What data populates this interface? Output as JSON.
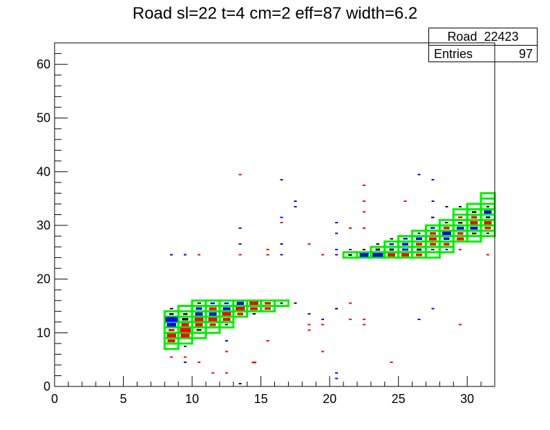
{
  "title": "Road sl=22 t=4 cm=2 eff=87 width=6.2",
  "stats": {
    "name": "Road_22423",
    "entries_label": "Entries",
    "entries_value": "97"
  },
  "chart_data": {
    "type": "heatmap",
    "title": "Road sl=22 t=4 cm=2 eff=87 width=6.2",
    "xlabel": "",
    "ylabel": "",
    "xlim": [
      0,
      32
    ],
    "ylim": [
      0,
      64
    ],
    "x_ticks": [
      0,
      5,
      10,
      15,
      20,
      25,
      30
    ],
    "y_ticks": [
      0,
      10,
      20,
      30,
      40,
      50,
      60
    ],
    "grid": false,
    "colors": {
      "red": "#ff0000",
      "blue": "#0000ff",
      "black": "#000000",
      "road": "#00ee00"
    },
    "road_boxes": [
      [
        8,
        7
      ],
      [
        8,
        8
      ],
      [
        8,
        9
      ],
      [
        8,
        10
      ],
      [
        8,
        11
      ],
      [
        8,
        12
      ],
      [
        8,
        13
      ],
      [
        9,
        8
      ],
      [
        9,
        9
      ],
      [
        9,
        10
      ],
      [
        9,
        11
      ],
      [
        9,
        12
      ],
      [
        9,
        13
      ],
      [
        9,
        14
      ],
      [
        10,
        9
      ],
      [
        10,
        10
      ],
      [
        10,
        11
      ],
      [
        10,
        12
      ],
      [
        10,
        13
      ],
      [
        10,
        14
      ],
      [
        10,
        15
      ],
      [
        11,
        10
      ],
      [
        11,
        11
      ],
      [
        11,
        12
      ],
      [
        11,
        13
      ],
      [
        11,
        14
      ],
      [
        11,
        15
      ],
      [
        12,
        11
      ],
      [
        12,
        12
      ],
      [
        12,
        13
      ],
      [
        12,
        14
      ],
      [
        12,
        15
      ],
      [
        13,
        13
      ],
      [
        13,
        14
      ],
      [
        13,
        15
      ],
      [
        14,
        14
      ],
      [
        14,
        15
      ],
      [
        15,
        14
      ],
      [
        15,
        15
      ],
      [
        16,
        15
      ],
      [
        21,
        24
      ],
      [
        22,
        24
      ],
      [
        23,
        24
      ],
      [
        23,
        25
      ],
      [
        24,
        24
      ],
      [
        24,
        25
      ],
      [
        24,
        26
      ],
      [
        25,
        24
      ],
      [
        25,
        25
      ],
      [
        25,
        26
      ],
      [
        25,
        27
      ],
      [
        26,
        24
      ],
      [
        26,
        25
      ],
      [
        26,
        26
      ],
      [
        26,
        27
      ],
      [
        26,
        28
      ],
      [
        27,
        24
      ],
      [
        27,
        25
      ],
      [
        27,
        26
      ],
      [
        27,
        27
      ],
      [
        27,
        28
      ],
      [
        27,
        29
      ],
      [
        28,
        25
      ],
      [
        28,
        26
      ],
      [
        28,
        27
      ],
      [
        28,
        28
      ],
      [
        28,
        29
      ],
      [
        28,
        30
      ],
      [
        29,
        27
      ],
      [
        29,
        28
      ],
      [
        29,
        29
      ],
      [
        29,
        30
      ],
      [
        29,
        31
      ],
      [
        29,
        32
      ],
      [
        30,
        27
      ],
      [
        30,
        28
      ],
      [
        30,
        29
      ],
      [
        30,
        30
      ],
      [
        30,
        31
      ],
      [
        30,
        32
      ],
      [
        30,
        33
      ],
      [
        31,
        28
      ],
      [
        31,
        29
      ],
      [
        31,
        30
      ],
      [
        31,
        31
      ],
      [
        31,
        32
      ],
      [
        31,
        33
      ],
      [
        31,
        34
      ],
      [
        31,
        35
      ]
    ],
    "cells": [
      {
        "x": 8,
        "y": 8,
        "c": "red",
        "w": 0.5
      },
      {
        "x": 8,
        "y": 9,
        "c": "red",
        "w": 0.6
      },
      {
        "x": 8,
        "y": 10,
        "c": "red",
        "w": 0.4
      },
      {
        "x": 8,
        "y": 11,
        "c": "blue",
        "w": 0.6
      },
      {
        "x": 8,
        "y": 12,
        "c": "blue",
        "w": 0.8
      },
      {
        "x": 8,
        "y": 13,
        "c": "black",
        "w": 0.3
      },
      {
        "x": 8,
        "y": 14,
        "c": "black",
        "w": 0.2
      },
      {
        "x": 8,
        "y": 5,
        "c": "red",
        "w": 0.15
      },
      {
        "x": 8,
        "y": 24,
        "c": "blue",
        "w": 0.15
      },
      {
        "x": 9,
        "y": 9,
        "c": "red",
        "w": 0.6
      },
      {
        "x": 9,
        "y": 10,
        "c": "red",
        "w": 0.7
      },
      {
        "x": 9,
        "y": 11,
        "c": "red",
        "w": 0.5
      },
      {
        "x": 9,
        "y": 12,
        "c": "black",
        "w": 0.4
      },
      {
        "x": 9,
        "y": 13,
        "c": "black",
        "w": 0.3
      },
      {
        "x": 9,
        "y": 7,
        "c": "blue",
        "w": 0.15
      },
      {
        "x": 9,
        "y": 5,
        "c": "red",
        "w": 0.15
      },
      {
        "x": 9,
        "y": 4,
        "c": "blue",
        "w": 0.15
      },
      {
        "x": 9,
        "y": 24,
        "c": "blue",
        "w": 0.15
      },
      {
        "x": 10,
        "y": 10,
        "c": "black",
        "w": 0.3
      },
      {
        "x": 10,
        "y": 11,
        "c": "red",
        "w": 0.5
      },
      {
        "x": 10,
        "y": 12,
        "c": "red",
        "w": 0.6
      },
      {
        "x": 10,
        "y": 13,
        "c": "blue",
        "w": 0.5
      },
      {
        "x": 10,
        "y": 14,
        "c": "blue",
        "w": 0.4
      },
      {
        "x": 10,
        "y": 15,
        "c": "black",
        "w": 0.25
      },
      {
        "x": 10,
        "y": 4,
        "c": "red",
        "w": 0.15
      },
      {
        "x": 10,
        "y": 24,
        "c": "red",
        "w": 0.15
      },
      {
        "x": 11,
        "y": 11,
        "c": "red",
        "w": 0.4
      },
      {
        "x": 11,
        "y": 12,
        "c": "red",
        "w": 0.6
      },
      {
        "x": 11,
        "y": 13,
        "c": "blue",
        "w": 0.5
      },
      {
        "x": 11,
        "y": 14,
        "c": "red",
        "w": 0.5
      },
      {
        "x": 11,
        "y": 15,
        "c": "blue",
        "w": 0.3
      },
      {
        "x": 11,
        "y": 2,
        "c": "red",
        "w": 0.15
      },
      {
        "x": 12,
        "y": 11,
        "c": "black",
        "w": 0.2
      },
      {
        "x": 12,
        "y": 12,
        "c": "red",
        "w": 0.5
      },
      {
        "x": 12,
        "y": 13,
        "c": "red",
        "w": 0.6
      },
      {
        "x": 12,
        "y": 14,
        "c": "blue",
        "w": 0.5
      },
      {
        "x": 12,
        "y": 15,
        "c": "blue",
        "w": 0.3
      },
      {
        "x": 12,
        "y": 2,
        "c": "red",
        "w": 0.15
      },
      {
        "x": 12,
        "y": 6,
        "c": "red",
        "w": 0.15
      },
      {
        "x": 12,
        "y": 8,
        "c": "blue",
        "w": 0.15
      },
      {
        "x": 13,
        "y": 13,
        "c": "red",
        "w": 0.4
      },
      {
        "x": 13,
        "y": 14,
        "c": "red",
        "w": 0.6
      },
      {
        "x": 13,
        "y": 15,
        "c": "blue",
        "w": 0.5
      },
      {
        "x": 13,
        "y": 24,
        "c": "red",
        "w": 0.15
      },
      {
        "x": 13,
        "y": 26,
        "c": "blue",
        "w": 0.15
      },
      {
        "x": 13,
        "y": 29,
        "c": "blue",
        "w": 0.15
      },
      {
        "x": 13,
        "y": 39,
        "c": "red",
        "w": 0.15
      },
      {
        "x": 13,
        "y": 0,
        "c": "black",
        "w": 0.1
      },
      {
        "x": 14,
        "y": 14,
        "c": "red",
        "w": 0.5
      },
      {
        "x": 14,
        "y": 15,
        "c": "red",
        "w": 0.6
      },
      {
        "x": 14,
        "y": 4,
        "c": "red",
        "w": 0.3
      },
      {
        "x": 14,
        "y": 13,
        "c": "black",
        "w": 0.2
      },
      {
        "x": 15,
        "y": 14,
        "c": "red",
        "w": 0.4
      },
      {
        "x": 15,
        "y": 15,
        "c": "red",
        "w": 0.4
      },
      {
        "x": 15,
        "y": 24,
        "c": "red",
        "w": 0.15
      },
      {
        "x": 15,
        "y": 25,
        "c": "red",
        "w": 0.15
      },
      {
        "x": 15,
        "y": 8,
        "c": "red",
        "w": 0.15
      },
      {
        "x": 16,
        "y": 15,
        "c": "black",
        "w": 0.2
      },
      {
        "x": 16,
        "y": 24,
        "c": "blue",
        "w": 0.15
      },
      {
        "x": 16,
        "y": 26,
        "c": "blue",
        "w": 0.15
      },
      {
        "x": 16,
        "y": 30,
        "c": "red",
        "w": 0.15
      },
      {
        "x": 16,
        "y": 31,
        "c": "blue",
        "w": 0.15
      },
      {
        "x": 16,
        "y": 38,
        "c": "blue",
        "w": 0.15
      },
      {
        "x": 17,
        "y": 15,
        "c": "black",
        "w": 0.15
      },
      {
        "x": 17,
        "y": 33,
        "c": "blue",
        "w": 0.15
      },
      {
        "x": 17,
        "y": 34,
        "c": "blue",
        "w": 0.15
      },
      {
        "x": 18,
        "y": 10,
        "c": "red",
        "w": 0.15
      },
      {
        "x": 18,
        "y": 11,
        "c": "red",
        "w": 0.15
      },
      {
        "x": 18,
        "y": 13,
        "c": "blue",
        "w": 0.15
      },
      {
        "x": 18,
        "y": 26,
        "c": "red",
        "w": 0.15
      },
      {
        "x": 19,
        "y": 6,
        "c": "red",
        "w": 0.15
      },
      {
        "x": 19,
        "y": 11,
        "c": "red",
        "w": 0.15
      },
      {
        "x": 19,
        "y": 12,
        "c": "blue",
        "w": 0.15
      },
      {
        "x": 19,
        "y": 24,
        "c": "red",
        "w": 0.15
      },
      {
        "x": 20,
        "y": 1,
        "c": "blue",
        "w": 0.15
      },
      {
        "x": 20,
        "y": 2,
        "c": "blue",
        "w": 0.15
      },
      {
        "x": 20,
        "y": 14,
        "c": "black",
        "w": 0.1
      },
      {
        "x": 20,
        "y": 24,
        "c": "blue",
        "w": 0.15
      },
      {
        "x": 20,
        "y": 25,
        "c": "blue",
        "w": 0.15
      },
      {
        "x": 20,
        "y": 28,
        "c": "blue",
        "w": 0.15
      },
      {
        "x": 20,
        "y": 30,
        "c": "blue",
        "w": 0.15
      },
      {
        "x": 21,
        "y": 15,
        "c": "red",
        "w": 0.15
      },
      {
        "x": 21,
        "y": 24,
        "c": "black",
        "w": 0.25
      },
      {
        "x": 21,
        "y": 25,
        "c": "blue",
        "w": 0.2
      },
      {
        "x": 21,
        "y": 29,
        "c": "red",
        "w": 0.15
      },
      {
        "x": 21,
        "y": 12,
        "c": "red",
        "w": 0.15
      },
      {
        "x": 22,
        "y": 24,
        "c": "blue",
        "w": 0.6
      },
      {
        "x": 22,
        "y": 25,
        "c": "black",
        "w": 0.2
      },
      {
        "x": 22,
        "y": 11,
        "c": "red",
        "w": 0.15
      },
      {
        "x": 22,
        "y": 12,
        "c": "red",
        "w": 0.15
      },
      {
        "x": 22,
        "y": 29,
        "c": "red",
        "w": 0.15
      },
      {
        "x": 22,
        "y": 32,
        "c": "red",
        "w": 0.15
      },
      {
        "x": 22,
        "y": 34,
        "c": "red",
        "w": 0.15
      },
      {
        "x": 22,
        "y": 37,
        "c": "red",
        "w": 0.15
      },
      {
        "x": 23,
        "y": 24,
        "c": "blue",
        "w": 0.7
      },
      {
        "x": 23,
        "y": 25,
        "c": "black",
        "w": 0.3
      },
      {
        "x": 23,
        "y": 26,
        "c": "black",
        "w": 0.2
      },
      {
        "x": 24,
        "y": 24,
        "c": "red",
        "w": 0.5
      },
      {
        "x": 24,
        "y": 25,
        "c": "black",
        "w": 0.3
      },
      {
        "x": 24,
        "y": 26,
        "c": "blue",
        "w": 0.3
      },
      {
        "x": 24,
        "y": 27,
        "c": "black",
        "w": 0.2
      },
      {
        "x": 24,
        "y": 4,
        "c": "red",
        "w": 0.15
      },
      {
        "x": 25,
        "y": 24,
        "c": "red",
        "w": 0.5
      },
      {
        "x": 25,
        "y": 25,
        "c": "blue",
        "w": 0.4
      },
      {
        "x": 25,
        "y": 26,
        "c": "blue",
        "w": 0.4
      },
      {
        "x": 25,
        "y": 27,
        "c": "blue",
        "w": 0.3
      },
      {
        "x": 25,
        "y": 34,
        "c": "red",
        "w": 0.15
      },
      {
        "x": 26,
        "y": 24,
        "c": "red",
        "w": 0.4
      },
      {
        "x": 26,
        "y": 25,
        "c": "black",
        "w": 0.3
      },
      {
        "x": 26,
        "y": 26,
        "c": "red",
        "w": 0.4
      },
      {
        "x": 26,
        "y": 27,
        "c": "blue",
        "w": 0.4
      },
      {
        "x": 26,
        "y": 28,
        "c": "black",
        "w": 0.2
      },
      {
        "x": 26,
        "y": 12,
        "c": "blue",
        "w": 0.15
      },
      {
        "x": 26,
        "y": 39,
        "c": "blue",
        "w": 0.15
      },
      {
        "x": 27,
        "y": 25,
        "c": "black",
        "w": 0.2
      },
      {
        "x": 27,
        "y": 26,
        "c": "red",
        "w": 0.4
      },
      {
        "x": 27,
        "y": 27,
        "c": "red",
        "w": 0.5
      },
      {
        "x": 27,
        "y": 28,
        "c": "red",
        "w": 0.4
      },
      {
        "x": 27,
        "y": 29,
        "c": "blue",
        "w": 0.3
      },
      {
        "x": 27,
        "y": 14,
        "c": "blue",
        "w": 0.15
      },
      {
        "x": 27,
        "y": 34,
        "c": "blue",
        "w": 0.15
      },
      {
        "x": 27,
        "y": 38,
        "c": "blue",
        "w": 0.15
      },
      {
        "x": 27,
        "y": 31,
        "c": "black",
        "w": 0.2
      },
      {
        "x": 28,
        "y": 26,
        "c": "red",
        "w": 0.4
      },
      {
        "x": 28,
        "y": 27,
        "c": "blue",
        "w": 0.4
      },
      {
        "x": 28,
        "y": 28,
        "c": "blue",
        "w": 0.6
      },
      {
        "x": 28,
        "y": 29,
        "c": "red",
        "w": 0.4
      },
      {
        "x": 28,
        "y": 30,
        "c": "black",
        "w": 0.2
      },
      {
        "x": 28,
        "y": 25,
        "c": "blue",
        "w": 0.15
      },
      {
        "x": 28,
        "y": 33,
        "c": "black",
        "w": 0.15
      },
      {
        "x": 29,
        "y": 27,
        "c": "red",
        "w": 0.5
      },
      {
        "x": 29,
        "y": 28,
        "c": "red",
        "w": 0.4
      },
      {
        "x": 29,
        "y": 29,
        "c": "blue",
        "w": 0.5
      },
      {
        "x": 29,
        "y": 30,
        "c": "black",
        "w": 0.3
      },
      {
        "x": 29,
        "y": 31,
        "c": "red",
        "w": 0.3
      },
      {
        "x": 29,
        "y": 11,
        "c": "red",
        "w": 0.15
      },
      {
        "x": 29,
        "y": 25,
        "c": "red",
        "w": 0.15
      },
      {
        "x": 29,
        "y": 33,
        "c": "black",
        "w": 0.15
      },
      {
        "x": 30,
        "y": 28,
        "c": "black",
        "w": 0.3
      },
      {
        "x": 30,
        "y": 29,
        "c": "blue",
        "w": 0.5
      },
      {
        "x": 30,
        "y": 30,
        "c": "red",
        "w": 0.5
      },
      {
        "x": 30,
        "y": 31,
        "c": "red",
        "w": 0.4
      },
      {
        "x": 30,
        "y": 32,
        "c": "black",
        "w": 0.3
      },
      {
        "x": 31,
        "y": 28,
        "c": "black",
        "w": 0.2
      },
      {
        "x": 31,
        "y": 29,
        "c": "red",
        "w": 0.4
      },
      {
        "x": 31,
        "y": 30,
        "c": "red",
        "w": 0.5
      },
      {
        "x": 31,
        "y": 31,
        "c": "black",
        "w": 0.3
      },
      {
        "x": 31,
        "y": 32,
        "c": "blue",
        "w": 0.5
      },
      {
        "x": 31,
        "y": 33,
        "c": "black",
        "w": 0.2
      },
      {
        "x": 31,
        "y": 24,
        "c": "red",
        "w": 0.15
      }
    ]
  }
}
